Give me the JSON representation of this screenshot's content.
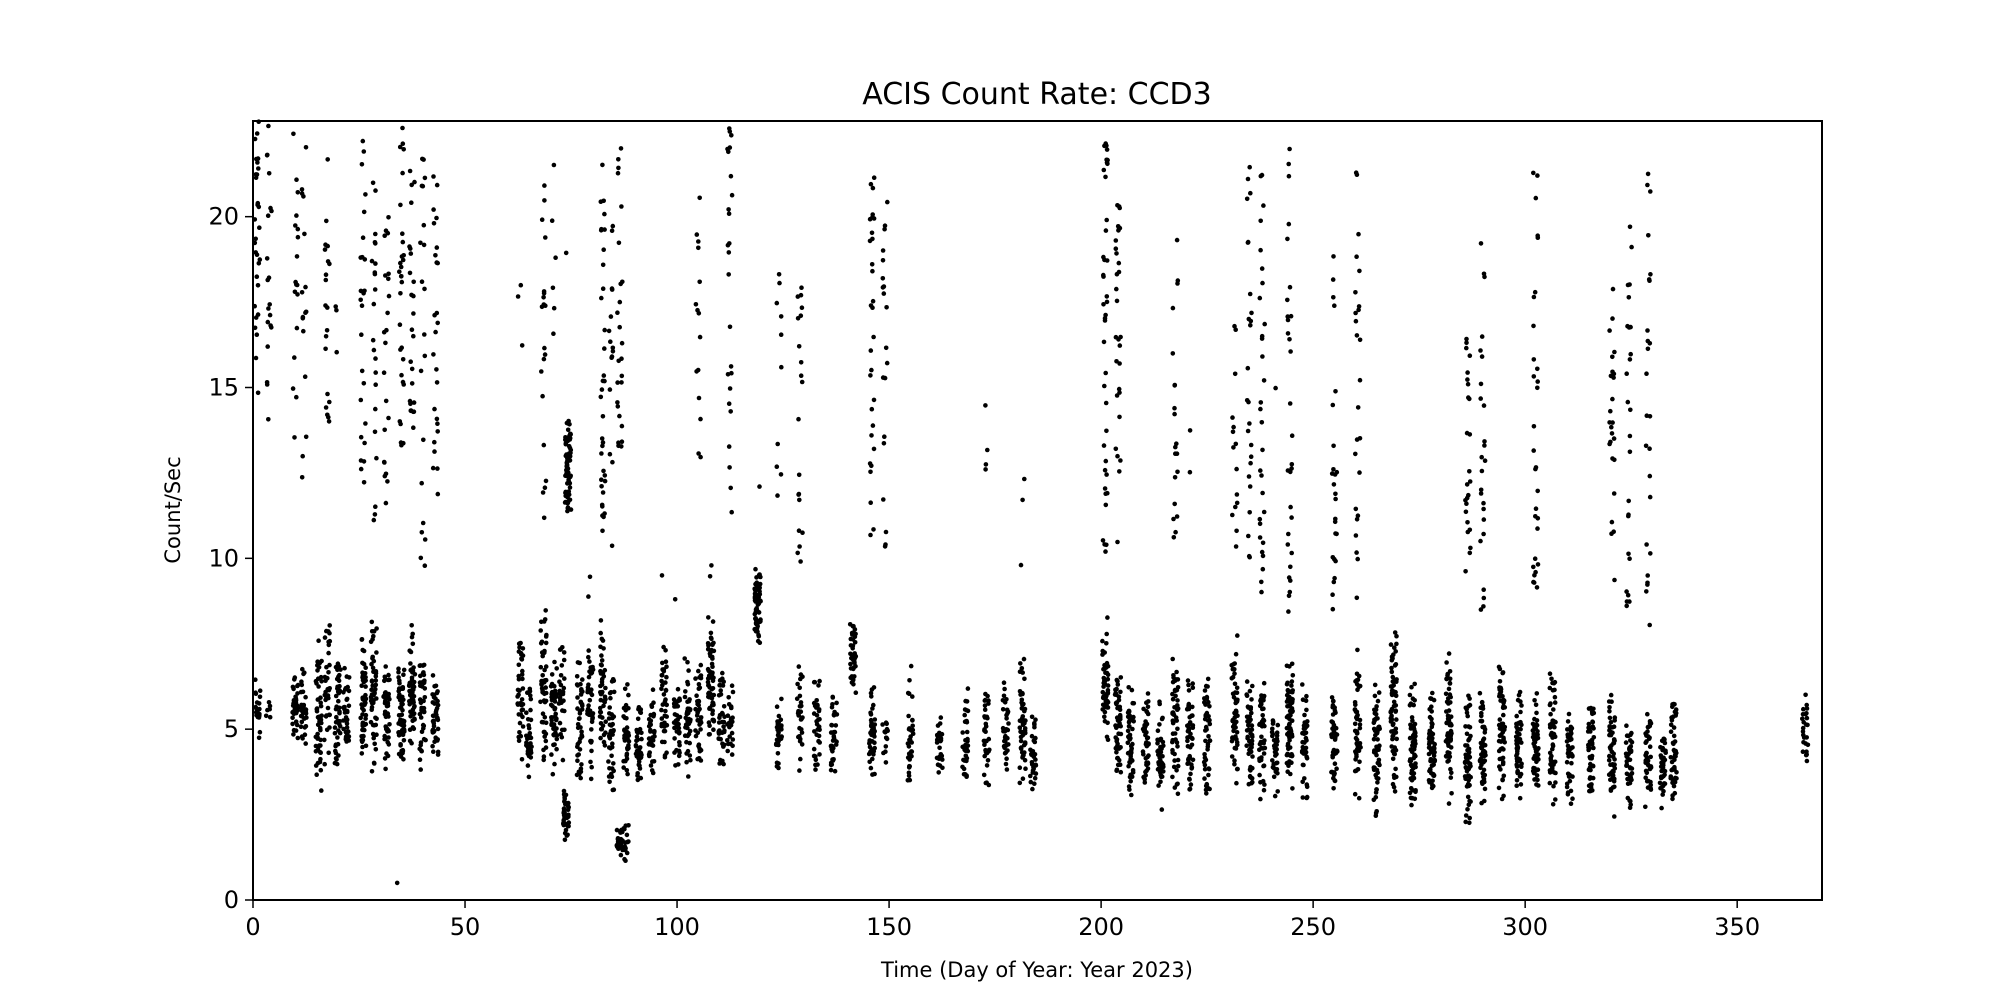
{
  "chart_data": {
    "type": "scatter",
    "title": "ACIS Count Rate: CCD3",
    "xlabel": "Time (Day of Year: Year 2023)",
    "ylabel": "Count/Sec",
    "xlim": [
      0,
      370
    ],
    "ylim": [
      0,
      22.8
    ],
    "xticks": [
      "0",
      "50",
      "100",
      "150",
      "200",
      "250",
      "300",
      "350"
    ],
    "yticks": [
      "0",
      "5",
      "10",
      "15",
      "20"
    ],
    "grid": false,
    "marker_color": "#000000",
    "clusters": [
      {
        "day": 1.0,
        "low": 4.3,
        "high": 7.0,
        "n": 20,
        "hi_min": 14.8,
        "hi_max": 22.8,
        "hi_n": 30
      },
      {
        "day": 3.8,
        "low": 5.0,
        "high": 6.0,
        "n": 6,
        "hi_min": 14.0,
        "hi_max": 22.8,
        "hi_n": 20
      },
      {
        "day": 10.0,
        "low": 4.5,
        "high": 6.6,
        "n": 40,
        "hi_min": 13.5,
        "hi_max": 22.6,
        "hi_n": 18
      },
      {
        "day": 12.0,
        "low": 4.2,
        "high": 7.2,
        "n": 30,
        "hi_min": 12.3,
        "hi_max": 22.4,
        "hi_n": 16
      },
      {
        "day": 15.5,
        "low": 2.8,
        "high": 7.7,
        "n": 50
      },
      {
        "day": 17.5,
        "low": 3.4,
        "high": 8.8,
        "n": 35,
        "hi_min": 13.9,
        "hi_max": 22.7,
        "hi_n": 20
      },
      {
        "day": 20.0,
        "low": 3.7,
        "high": 7.8,
        "n": 45,
        "hi_min": 14.2,
        "hi_max": 17.8,
        "hi_n": 3
      },
      {
        "day": 22.0,
        "low": 3.8,
        "high": 6.9,
        "n": 35
      },
      {
        "day": 26.0,
        "low": 3.9,
        "high": 7.8,
        "n": 50,
        "hi_min": 12.0,
        "hi_max": 22.8,
        "hi_n": 25
      },
      {
        "day": 28.5,
        "low": 3.5,
        "high": 8.7,
        "n": 55,
        "hi_min": 11.1,
        "hi_max": 22.0,
        "hi_n": 22
      },
      {
        "day": 31.5,
        "low": 3.8,
        "high": 7.3,
        "n": 45,
        "hi_min": 11.2,
        "hi_max": 20.5,
        "hi_n": 22
      },
      {
        "day": 35.0,
        "low": 3.6,
        "high": 7.1,
        "n": 60,
        "hi_min": 13.2,
        "hi_max": 22.8,
        "hi_n": 30
      },
      {
        "day": 37.5,
        "low": 3.8,
        "high": 8.3,
        "n": 55,
        "hi_min": 13.5,
        "hi_max": 22.5,
        "hi_n": 25
      },
      {
        "day": 40.0,
        "low": 3.7,
        "high": 7.3,
        "n": 45,
        "hi_min": 9.6,
        "hi_max": 22.3,
        "hi_n": 20
      },
      {
        "day": 43.0,
        "low": 3.9,
        "high": 6.7,
        "n": 40,
        "hi_min": 11.8,
        "hi_max": 21.5,
        "hi_n": 25
      },
      {
        "day": 63.0,
        "low": 3.6,
        "high": 8.4,
        "n": 40,
        "hi_min": 16.0,
        "hi_max": 18.3,
        "hi_n": 3
      },
      {
        "day": 65.0,
        "low": 3.3,
        "high": 6.3,
        "n": 35
      },
      {
        "day": 68.5,
        "low": 3.4,
        "high": 8.8,
        "n": 50,
        "hi_min": 10.7,
        "hi_max": 21.2,
        "hi_n": 20
      },
      {
        "day": 71.0,
        "low": 3.5,
        "high": 7.6,
        "n": 45,
        "hi_min": 15.3,
        "hi_max": 22.0,
        "hi_n": 6
      },
      {
        "day": 72.8,
        "low": 3.8,
        "high": 8.0,
        "n": 30
      },
      {
        "day": 73.8,
        "low": 1.7,
        "high": 3.3,
        "n": 40
      },
      {
        "day": 74.3,
        "low": 11.0,
        "high": 14.3,
        "n": 70,
        "hi_min": 18.9,
        "hi_max": 19.0,
        "hi_n": 1
      },
      {
        "day": 77.0,
        "low": 3.2,
        "high": 7.2,
        "n": 45
      },
      {
        "day": 79.5,
        "low": 3.3,
        "high": 7.8,
        "n": 40,
        "hi_min": 8.6,
        "hi_max": 9.8,
        "hi_n": 2
      },
      {
        "day": 82.5,
        "low": 3.5,
        "high": 8.4,
        "n": 45,
        "hi_min": 10.6,
        "hi_max": 22.8,
        "hi_n": 35
      },
      {
        "day": 84.5,
        "low": 3.1,
        "high": 6.8,
        "n": 40,
        "hi_min": 9.2,
        "hi_max": 20.5,
        "hi_n": 15
      },
      {
        "day": 86.5,
        "low": 1.2,
        "high": 2.3,
        "n": 25,
        "hi_min": 13.0,
        "hi_max": 22.0,
        "hi_n": 25
      },
      {
        "day": 88.0,
        "low": 3.3,
        "high": 6.5,
        "n": 40,
        "hi_min": 1.1,
        "hi_max": 2.2,
        "hi_n": 15
      },
      {
        "day": 91.0,
        "low": 3.2,
        "high": 6.2,
        "n": 40
      },
      {
        "day": 94.0,
        "low": 3.3,
        "high": 6.4,
        "n": 40
      },
      {
        "day": 97.0,
        "low": 3.6,
        "high": 7.6,
        "n": 40,
        "hi_min": 9.5,
        "hi_max": 9.5,
        "hi_n": 1
      },
      {
        "day": 100.0,
        "low": 3.6,
        "high": 6.7,
        "n": 40,
        "hi_min": 8.8,
        "hi_max": 8.8,
        "hi_n": 1
      },
      {
        "day": 102.5,
        "low": 3.5,
        "high": 7.2,
        "n": 40
      },
      {
        "day": 105.0,
        "low": 3.6,
        "high": 7.5,
        "n": 40,
        "hi_min": 11.8,
        "hi_max": 22.2,
        "hi_n": 15
      },
      {
        "day": 108.0,
        "low": 4.5,
        "high": 8.5,
        "n": 60,
        "hi_min": 9.3,
        "hi_max": 10.0,
        "hi_n": 2
      },
      {
        "day": 110.5,
        "low": 3.3,
        "high": 7.2,
        "n": 40
      },
      {
        "day": 112.5,
        "low": 3.8,
        "high": 6.6,
        "n": 25,
        "hi_min": 11.3,
        "hi_max": 22.8,
        "hi_n": 25
      },
      {
        "day": 119.0,
        "low": 7.3,
        "high": 10.1,
        "n": 70,
        "hi_min": 12.1,
        "hi_max": 12.1,
        "hi_n": 1
      },
      {
        "day": 124.0,
        "low": 3.4,
        "high": 6.2,
        "n": 30,
        "hi_min": 11.2,
        "hi_max": 18.9,
        "hi_n": 10
      },
      {
        "day": 129.0,
        "low": 3.6,
        "high": 6.9,
        "n": 30,
        "hi_min": 9.6,
        "hi_max": 18.0,
        "hi_n": 20
      },
      {
        "day": 133.0,
        "low": 3.7,
        "high": 6.8,
        "n": 35
      },
      {
        "day": 137.0,
        "low": 3.3,
        "high": 6.2,
        "n": 35
      },
      {
        "day": 141.5,
        "low": 5.8,
        "high": 8.3,
        "n": 40
      },
      {
        "day": 146.0,
        "low": 3.3,
        "high": 6.6,
        "n": 45,
        "hi_min": 10.0,
        "hi_max": 21.5,
        "hi_n": 30
      },
      {
        "day": 149.0,
        "low": 3.9,
        "high": 5.8,
        "n": 15,
        "hi_min": 10.0,
        "hi_max": 20.6,
        "hi_n": 20
      },
      {
        "day": 155.0,
        "low": 3.2,
        "high": 7.3,
        "n": 35
      },
      {
        "day": 162.0,
        "low": 3.4,
        "high": 5.7,
        "n": 25
      },
      {
        "day": 168.0,
        "low": 3.3,
        "high": 6.3,
        "n": 35
      },
      {
        "day": 173.0,
        "low": 3.3,
        "high": 6.7,
        "n": 35,
        "hi_min": 11.7,
        "hi_max": 15.6,
        "hi_n": 4
      },
      {
        "day": 177.5,
        "low": 3.4,
        "high": 6.5,
        "n": 35
      },
      {
        "day": 181.5,
        "low": 3.2,
        "high": 7.3,
        "n": 55,
        "hi_min": 9.2,
        "hi_max": 13.3,
        "hi_n": 3
      },
      {
        "day": 184.0,
        "low": 3.0,
        "high": 5.5,
        "n": 30
      },
      {
        "day": 201.0,
        "low": 4.2,
        "high": 8.3,
        "n": 60,
        "hi_min": 9.9,
        "hi_max": 22.2,
        "hi_n": 40
      },
      {
        "day": 204.0,
        "low": 3.2,
        "high": 6.8,
        "n": 50,
        "hi_min": 9.9,
        "hi_max": 20.5,
        "hi_n": 30
      },
      {
        "day": 207.0,
        "low": 3.0,
        "high": 6.4,
        "n": 50
      },
      {
        "day": 210.5,
        "low": 3.1,
        "high": 6.3,
        "n": 45
      },
      {
        "day": 214.0,
        "low": 2.3,
        "high": 6.1,
        "n": 45
      },
      {
        "day": 217.5,
        "low": 3.0,
        "high": 7.1,
        "n": 50,
        "hi_min": 9.9,
        "hi_max": 20.4,
        "hi_n": 20
      },
      {
        "day": 221.0,
        "low": 3.0,
        "high": 6.7,
        "n": 50,
        "hi_min": 12.4,
        "hi_max": 17.6,
        "hi_n": 2
      },
      {
        "day": 225.0,
        "low": 2.7,
        "high": 6.7,
        "n": 45
      },
      {
        "day": 231.5,
        "low": 3.2,
        "high": 8.0,
        "n": 55,
        "hi_min": 9.3,
        "hi_max": 17.5,
        "hi_n": 15
      },
      {
        "day": 235.0,
        "low": 2.9,
        "high": 6.8,
        "n": 50,
        "hi_min": 9.8,
        "hi_max": 21.7,
        "hi_n": 25
      },
      {
        "day": 238.0,
        "low": 2.9,
        "high": 6.7,
        "n": 45,
        "hi_min": 9.0,
        "hi_max": 21.4,
        "hi_n": 30
      },
      {
        "day": 241.0,
        "low": 2.8,
        "high": 5.7,
        "n": 35,
        "hi_min": 14.9,
        "hi_max": 15.0,
        "hi_n": 1
      },
      {
        "day": 244.5,
        "low": 3.0,
        "high": 7.3,
        "n": 70,
        "hi_min": 8.1,
        "hi_max": 22.3,
        "hi_n": 30
      },
      {
        "day": 248.0,
        "low": 2.6,
        "high": 6.7,
        "n": 45
      },
      {
        "day": 255.0,
        "low": 2.5,
        "high": 6.2,
        "n": 45,
        "hi_min": 8.3,
        "hi_max": 19.1,
        "hi_n": 25
      },
      {
        "day": 260.5,
        "low": 2.6,
        "high": 7.8,
        "n": 50,
        "hi_min": 8.0,
        "hi_max": 21.8,
        "hi_n": 25
      },
      {
        "day": 265.0,
        "low": 2.4,
        "high": 6.5,
        "n": 60
      },
      {
        "day": 269.0,
        "low": 2.6,
        "high": 8.4,
        "n": 70
      },
      {
        "day": 273.5,
        "low": 2.5,
        "high": 6.6,
        "n": 75
      },
      {
        "day": 278.0,
        "low": 2.6,
        "high": 6.2,
        "n": 60
      },
      {
        "day": 282.0,
        "low": 2.6,
        "high": 7.6,
        "n": 60
      },
      {
        "day": 286.5,
        "low": 2.1,
        "high": 6.6,
        "n": 60,
        "hi_min": 9.5,
        "hi_max": 16.6,
        "hi_n": 25
      },
      {
        "day": 290.0,
        "low": 2.7,
        "high": 6.3,
        "n": 55,
        "hi_min": 8.5,
        "hi_max": 19.4,
        "hi_n": 25
      },
      {
        "day": 294.5,
        "low": 2.6,
        "high": 7.5,
        "n": 60
      },
      {
        "day": 298.5,
        "low": 2.6,
        "high": 6.2,
        "n": 55
      },
      {
        "day": 302.5,
        "low": 2.6,
        "high": 6.2,
        "n": 60,
        "hi_min": 8.8,
        "hi_max": 21.4,
        "hi_n": 30
      },
      {
        "day": 306.5,
        "low": 2.7,
        "high": 6.9,
        "n": 55
      },
      {
        "day": 310.5,
        "low": 2.7,
        "high": 5.6,
        "n": 45
      },
      {
        "day": 315.5,
        "low": 2.6,
        "high": 6.1,
        "n": 50
      },
      {
        "day": 320.5,
        "low": 2.3,
        "high": 6.3,
        "n": 55,
        "hi_min": 8.9,
        "hi_max": 18.0,
        "hi_n": 25
      },
      {
        "day": 324.5,
        "low": 2.6,
        "high": 5.5,
        "n": 40,
        "hi_min": 8.6,
        "hi_max": 19.8,
        "hi_n": 25
      },
      {
        "day": 329.0,
        "low": 2.6,
        "high": 5.6,
        "n": 45,
        "hi_min": 8.0,
        "hi_max": 22.0,
        "hi_n": 25
      },
      {
        "day": 332.5,
        "low": 2.6,
        "high": 5.4,
        "n": 40
      },
      {
        "day": 335.0,
        "low": 2.5,
        "high": 6.2,
        "n": 45
      },
      {
        "day": 366.0,
        "low": 3.8,
        "high": 6.3,
        "n": 25
      }
    ],
    "isolated_points": [
      [
        34,
        0.5
      ]
    ]
  }
}
